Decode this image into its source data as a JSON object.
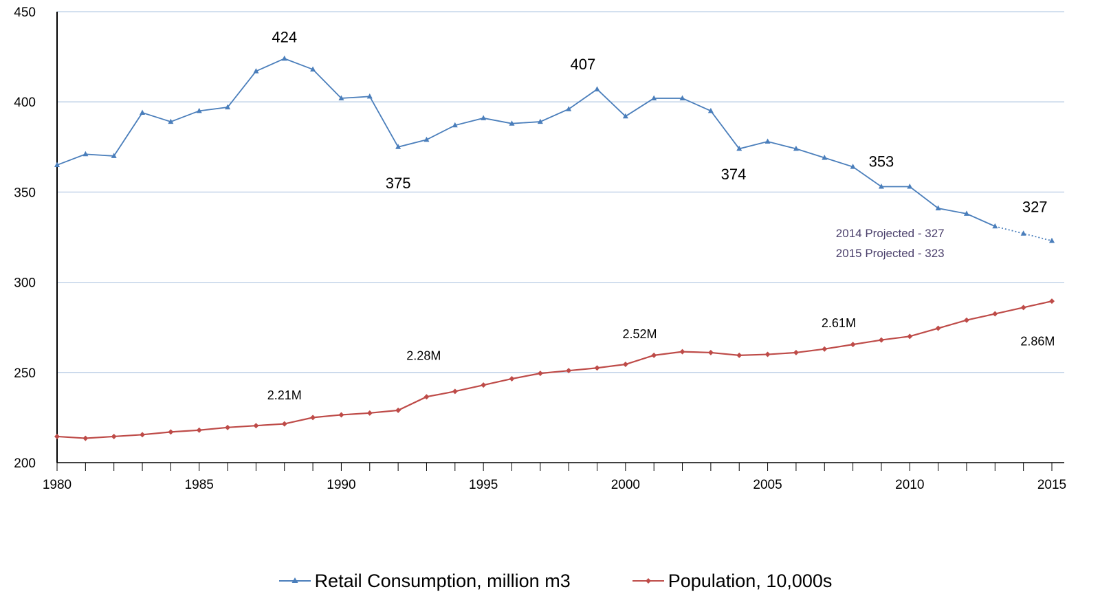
{
  "chart_data": {
    "type": "line",
    "title": "",
    "xlabel": "",
    "ylabel": "",
    "xlim": [
      1980,
      2015
    ],
    "ylim": [
      200,
      450
    ],
    "x_ticks": [
      1980,
      1985,
      1990,
      1995,
      2000,
      2005,
      2010,
      2015
    ],
    "y_ticks": [
      200,
      250,
      300,
      350,
      400,
      450
    ],
    "grid": "horizontal",
    "legend_position": "bottom",
    "colors": {
      "retail": "#4a7ebb",
      "population": "#be4b48",
      "grid": "#b9cde5",
      "note": "#4a3f6b"
    },
    "series": [
      {
        "name": "Retail Consumption, million m3",
        "marker": "triangle",
        "x": [
          1980,
          1981,
          1982,
          1983,
          1984,
          1985,
          1986,
          1987,
          1988,
          1989,
          1990,
          1991,
          1992,
          1993,
          1994,
          1995,
          1996,
          1997,
          1998,
          1999,
          2000,
          2001,
          2002,
          2003,
          2004,
          2005,
          2006,
          2007,
          2008,
          2009,
          2010,
          2011,
          2012,
          2013,
          2014,
          2015
        ],
        "values": [
          365,
          371,
          370,
          394,
          389,
          395,
          397,
          417,
          424,
          418,
          402,
          403,
          375,
          379,
          387,
          391,
          388,
          389,
          396,
          407,
          392,
          402,
          402,
          395,
          374,
          378,
          374,
          369,
          364,
          353,
          353,
          341,
          338,
          331,
          327,
          323
        ],
        "projected_from_x": 2013
      },
      {
        "name": "Population, 10,000s",
        "marker": "diamond",
        "x": [
          1980,
          1981,
          1982,
          1983,
          1984,
          1985,
          1986,
          1987,
          1988,
          1989,
          1990,
          1991,
          1992,
          1993,
          1994,
          1995,
          1996,
          1997,
          1998,
          1999,
          2000,
          2001,
          2002,
          2003,
          2004,
          2005,
          2006,
          2007,
          2008,
          2009,
          2010,
          2011,
          2012,
          2013,
          2014,
          2015
        ],
        "values": [
          214.5,
          213.5,
          214.5,
          215.5,
          217,
          218,
          219.5,
          220.5,
          221.5,
          225,
          226.5,
          227.5,
          229,
          236.5,
          239.5,
          243,
          246.5,
          249.5,
          251,
          252.5,
          254.5,
          259.5,
          261.5,
          261,
          259.5,
          260,
          261,
          263,
          265.5,
          268,
          270,
          274.5,
          279,
          282.5,
          286,
          289.5
        ]
      }
    ],
    "annotations": {
      "retail": [
        {
          "text": "424",
          "x": 1988,
          "y": 433
        },
        {
          "text": "407",
          "x": 1998.5,
          "y": 418
        },
        {
          "text": "375",
          "x": 1992,
          "y": 352
        },
        {
          "text": "374",
          "x": 2003.8,
          "y": 357
        },
        {
          "text": "353",
          "x": 2009,
          "y": 364
        },
        {
          "text": "327",
          "x": 2014.4,
          "y": 339
        }
      ],
      "population": [
        {
          "text": "2.21M",
          "x": 1988,
          "y": 235
        },
        {
          "text": "2.28M",
          "x": 1992.9,
          "y": 257
        },
        {
          "text": "2.52M",
          "x": 2000.5,
          "y": 269
        },
        {
          "text": "2.61M",
          "x": 2007.5,
          "y": 275
        },
        {
          "text": "2.86M",
          "x": 2014.5,
          "y": 265
        }
      ],
      "projection_notes": [
        {
          "text": "2014 Projected - 327",
          "x": 2007.4,
          "y": 325
        },
        {
          "text": "2015 Projected - 323",
          "x": 2007.4,
          "y": 314
        }
      ]
    }
  }
}
